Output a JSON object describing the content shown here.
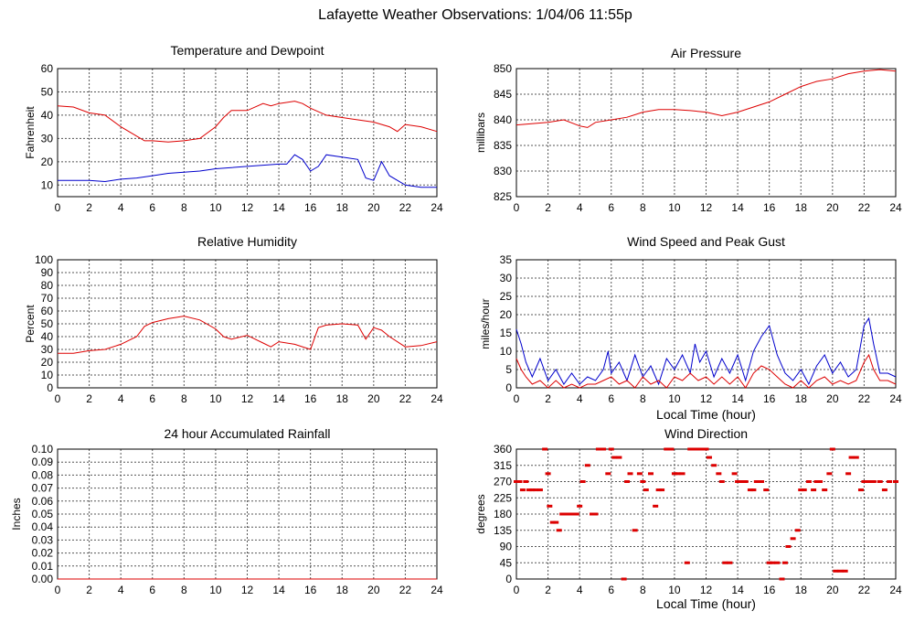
{
  "title": "Lafayette Weather Observations: 1/04/06 11:55p",
  "colors": {
    "red": "#dd0000",
    "blue": "#0000cc",
    "grid": "#555555"
  },
  "chart_data": [
    {
      "id": "temp",
      "type": "line",
      "title": "Temperature and Dewpoint",
      "xlabel": "",
      "ylabel": "Fahrenheit",
      "xlim": [
        0,
        24
      ],
      "ylim": [
        5,
        60
      ],
      "xticks": [
        0,
        2,
        4,
        6,
        8,
        10,
        12,
        14,
        16,
        18,
        20,
        22,
        24
      ],
      "yticks": [
        10,
        20,
        30,
        40,
        50,
        60
      ],
      "series": [
        {
          "color": "#dd0000",
          "x": [
            0,
            1,
            2,
            3,
            4,
            5,
            5.5,
            6,
            7,
            8,
            9,
            10,
            10.5,
            11,
            12,
            13,
            13.5,
            14,
            15,
            15.5,
            16,
            17,
            18,
            19,
            20,
            21,
            21.5,
            22,
            23,
            24
          ],
          "y": [
            44,
            43.5,
            41,
            40,
            35,
            31,
            29,
            29,
            28.5,
            29,
            30,
            35,
            39,
            42,
            42,
            45,
            44,
            45,
            46,
            45,
            43,
            40,
            39,
            38,
            37,
            35,
            33,
            36,
            35,
            33
          ]
        },
        {
          "color": "#0000cc",
          "x": [
            0,
            1,
            2,
            3,
            4,
            5,
            6,
            7,
            8,
            9,
            10,
            11,
            12,
            13,
            14,
            14.5,
            15,
            15.5,
            16,
            16.5,
            17,
            18,
            19,
            19.5,
            20,
            20.5,
            21,
            22,
            23,
            24
          ],
          "y": [
            12,
            12,
            12,
            11.5,
            12.5,
            13,
            14,
            15,
            15.5,
            16,
            17,
            17.5,
            18,
            18.5,
            19,
            19,
            23,
            21,
            16,
            18,
            23,
            22,
            21,
            13,
            12,
            20,
            14,
            10,
            9,
            9
          ]
        }
      ]
    },
    {
      "id": "pressure",
      "type": "line",
      "title": "Air Pressure",
      "xlabel": "",
      "ylabel": "millibars",
      "xlim": [
        0,
        24
      ],
      "ylim": [
        825,
        850
      ],
      "xticks": [
        0,
        2,
        4,
        6,
        8,
        10,
        12,
        14,
        16,
        18,
        20,
        22,
        24
      ],
      "yticks": [
        825,
        830,
        835,
        840,
        845,
        850
      ],
      "series": [
        {
          "color": "#dd0000",
          "x": [
            0,
            2,
            3,
            4,
            4.5,
            5,
            6,
            7,
            8,
            9,
            10,
            11,
            12,
            13,
            14,
            15,
            16,
            17,
            18,
            19,
            20,
            21,
            22,
            23,
            24
          ],
          "y": [
            839,
            839.5,
            840,
            838.8,
            838.5,
            839.5,
            840,
            840.5,
            841.5,
            842,
            842,
            841.8,
            841.5,
            840.8,
            841.5,
            842.5,
            843.5,
            845,
            846.5,
            847.5,
            848,
            849,
            849.5,
            849.8,
            849.5
          ]
        }
      ]
    },
    {
      "id": "humidity",
      "type": "line",
      "title": "Relative Humidity",
      "xlabel": "",
      "ylabel": "Percent",
      "xlim": [
        0,
        24
      ],
      "ylim": [
        0,
        100
      ],
      "xticks": [
        0,
        2,
        4,
        6,
        8,
        10,
        12,
        14,
        16,
        18,
        20,
        22,
        24
      ],
      "yticks": [
        0,
        10,
        20,
        30,
        40,
        50,
        60,
        70,
        80,
        90,
        100
      ],
      "series": [
        {
          "color": "#dd0000",
          "x": [
            0,
            1,
            2,
            3,
            4,
            5,
            5.5,
            6,
            7,
            8,
            9,
            10,
            10.5,
            11,
            12,
            13,
            13.5,
            14,
            15,
            16,
            16.5,
            17,
            18,
            19,
            19.5,
            20,
            20.5,
            21,
            22,
            23,
            24
          ],
          "y": [
            27,
            27,
            29,
            30,
            34,
            40,
            48,
            51,
            54,
            56,
            53,
            46,
            40,
            38,
            41,
            35,
            32,
            36,
            34,
            30,
            47,
            49,
            50,
            49,
            38,
            47,
            45,
            40,
            32,
            33,
            36
          ]
        }
      ]
    },
    {
      "id": "wind",
      "type": "line",
      "title": "Wind Speed and Peak Gust",
      "xlabel": "Local Time (hour)",
      "ylabel": "miles/hour",
      "xlim": [
        0,
        24
      ],
      "ylim": [
        0,
        35
      ],
      "xticks": [
        0,
        2,
        4,
        6,
        8,
        10,
        12,
        14,
        16,
        18,
        20,
        22,
        24
      ],
      "yticks": [
        0,
        5,
        10,
        15,
        20,
        25,
        30,
        35
      ],
      "series": [
        {
          "color": "#0000cc",
          "x": [
            0,
            0.3,
            0.6,
            1,
            1.5,
            2,
            2.5,
            3,
            3.5,
            4,
            4.5,
            5,
            5.5,
            5.8,
            6,
            6.5,
            7,
            7.5,
            8,
            8.5,
            9,
            9.5,
            10,
            10.5,
            11,
            11.3,
            11.6,
            12,
            12.5,
            13,
            13.5,
            14,
            14.5,
            15,
            15.5,
            16,
            16.5,
            17,
            17.5,
            18,
            18.5,
            19,
            19.5,
            20,
            20.5,
            21,
            21.5,
            22,
            22.3,
            22.6,
            23,
            23.5,
            24
          ],
          "y": [
            16,
            12,
            7,
            3,
            8,
            2,
            5,
            1,
            4,
            1,
            3,
            2,
            5,
            10,
            4,
            7,
            2,
            9,
            3,
            6,
            1,
            8,
            5,
            9,
            4,
            12,
            7,
            10,
            3,
            8,
            4,
            9,
            2,
            10,
            14,
            17,
            9,
            4,
            2,
            5,
            1,
            6,
            9,
            4,
            7,
            3,
            5,
            17,
            19,
            12,
            4,
            4,
            3
          ]
        },
        {
          "color": "#dd0000",
          "x": [
            0,
            0.3,
            0.6,
            1,
            1.5,
            2,
            2.5,
            3,
            3.5,
            4,
            4.5,
            5,
            5.5,
            6,
            6.5,
            7,
            7.5,
            8,
            8.5,
            9,
            9.5,
            10,
            10.5,
            11,
            11.5,
            12,
            12.5,
            13,
            13.5,
            14,
            14.5,
            15,
            15.5,
            16,
            16.5,
            17,
            17.5,
            18,
            18.5,
            19,
            19.5,
            20,
            20.5,
            21,
            21.5,
            22,
            22.3,
            22.6,
            23,
            23.5,
            24
          ],
          "y": [
            8,
            5,
            3,
            1,
            2,
            0,
            2,
            0,
            1,
            0,
            1,
            1,
            2,
            3,
            1,
            2,
            0,
            3,
            1,
            2,
            0,
            3,
            2,
            4,
            2,
            3,
            1,
            3,
            1,
            3,
            0,
            4,
            6,
            5,
            3,
            1,
            0,
            2,
            0,
            2,
            3,
            1,
            2,
            1,
            2,
            7,
            9,
            5,
            2,
            2,
            1
          ]
        }
      ]
    },
    {
      "id": "rain",
      "type": "line",
      "title": "24 hour Accumulated Rainfall",
      "xlabel": "",
      "ylabel": "Inches",
      "xlim": [
        0,
        24
      ],
      "ylim": [
        0,
        0.1
      ],
      "xticks": [
        0,
        2,
        4,
        6,
        8,
        10,
        12,
        14,
        16,
        18,
        20,
        22,
        24
      ],
      "yticks": [
        "0.00",
        "0.01",
        "0.02",
        "0.03",
        "0.04",
        "0.05",
        "0.06",
        "0.07",
        "0.08",
        "0.09",
        "0.10"
      ],
      "series": [
        {
          "color": "#dd0000",
          "x": [
            0,
            24
          ],
          "y": [
            0,
            0
          ]
        }
      ]
    },
    {
      "id": "direction",
      "type": "scatter",
      "title": "Wind Direction",
      "xlabel": "Local Time (hour)",
      "ylabel": "degrees",
      "xlim": [
        0,
        24
      ],
      "ylim": [
        0,
        360
      ],
      "xticks": [
        0,
        2,
        4,
        6,
        8,
        10,
        12,
        14,
        16,
        18,
        20,
        22,
        24
      ],
      "yticks": [
        0,
        45,
        90,
        135,
        180,
        225,
        270,
        315,
        360
      ],
      "series": [
        {
          "color": "#dd0000",
          "x": [
            0,
            0.2,
            0.4,
            0.6,
            0.8,
            1,
            1.2,
            1.5,
            1.8,
            2,
            2.1,
            2.3,
            2.5,
            2.7,
            2.9,
            3,
            3.2,
            3.5,
            3.8,
            4,
            4.2,
            4.5,
            4.8,
            5,
            5.2,
            5.5,
            5.8,
            6,
            6.2,
            6.5,
            6.8,
            7,
            7.2,
            7.5,
            7.8,
            8,
            8.2,
            8.5,
            8.8,
            9,
            9.2,
            9.5,
            9.8,
            10,
            10.2,
            10.5,
            10.8,
            11,
            11.2,
            11.5,
            11.8,
            12,
            12.2,
            12.5,
            12.8,
            13,
            13.2,
            13.5,
            13.8,
            14,
            14.2,
            14.5,
            14.8,
            15,
            15.2,
            15.5,
            15.8,
            16,
            16.2,
            16.5,
            16.8,
            17,
            17.2,
            17.5,
            17.8,
            18,
            18.2,
            18.5,
            18.8,
            19,
            19.2,
            19.5,
            19.8,
            20,
            20.2,
            20.5,
            20.8,
            21,
            21.2,
            21.5,
            21.8,
            22,
            22.3,
            22.6,
            23,
            23.3,
            23.6,
            24
          ],
          "y": [
            270,
            270,
            247,
            270,
            247,
            247,
            247,
            247,
            360,
            292,
            202,
            157,
            157,
            135,
            180,
            180,
            180,
            180,
            180,
            202,
            270,
            315,
            180,
            180,
            360,
            360,
            292,
            360,
            337,
            337,
            0,
            270,
            292,
            135,
            292,
            270,
            247,
            292,
            202,
            247,
            247,
            360,
            360,
            292,
            292,
            292,
            45,
            360,
            360,
            360,
            360,
            360,
            337,
            315,
            292,
            270,
            45,
            45,
            292,
            270,
            270,
            270,
            247,
            247,
            270,
            270,
            247,
            45,
            45,
            45,
            0,
            45,
            90,
            112,
            135,
            247,
            247,
            270,
            247,
            270,
            270,
            247,
            292,
            360,
            22,
            22,
            22,
            292,
            337,
            337,
            247,
            270,
            270,
            270,
            270,
            247,
            270,
            270
          ]
        }
      ]
    }
  ]
}
